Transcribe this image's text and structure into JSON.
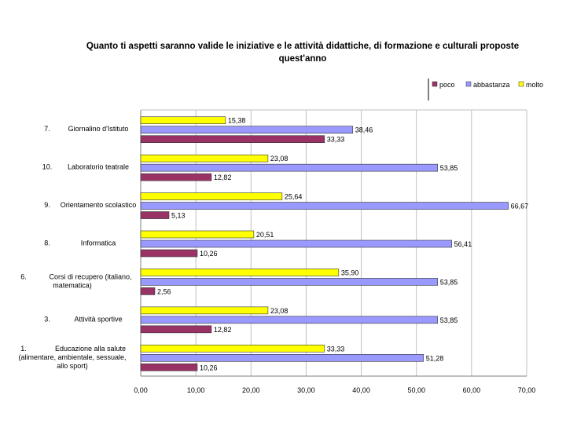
{
  "chart_data": {
    "type": "bar",
    "orientation": "horizontal",
    "title": "Quanto ti aspetti saranno valide le iniziative e le attività didattiche, di formazione e culturali proposte quest'anno",
    "title_lines": [
      "Quanto ti aspetti saranno valide le iniziative e le attività didattiche, di formazione e culturali proposte",
      "quest'anno"
    ],
    "xlim": [
      0,
      70
    ],
    "xticks": [
      0,
      10,
      20,
      30,
      40,
      50,
      60,
      70
    ],
    "xtick_labels": [
      "0,00",
      "10,00",
      "20,00",
      "30,00",
      "40,00",
      "50,00",
      "60,00",
      "70,00"
    ],
    "grid": true,
    "legend_position": "top-right",
    "categories": [
      {
        "num": "7.",
        "lines": [
          "Giornalino d'Istituto"
        ]
      },
      {
        "num": "10.",
        "lines": [
          "Laboratorio teatrale"
        ]
      },
      {
        "num": "9.",
        "lines": [
          "Orientamento scolastico"
        ]
      },
      {
        "num": "8.",
        "lines": [
          "Informatica"
        ]
      },
      {
        "num": "6.",
        "lines": [
          "Corsi di recupero (italiano,",
          "matematica)"
        ]
      },
      {
        "num": "3.",
        "lines": [
          "Attività sportive"
        ]
      },
      {
        "num": "1.",
        "lines": [
          "Educazione alla salute",
          "(alimentare, ambientale, sessuale,",
          "allo sport)"
        ]
      }
    ],
    "series": [
      {
        "name": "poco",
        "color": "#993366",
        "values": [
          33.33,
          12.82,
          5.13,
          10.26,
          2.56,
          12.82,
          10.26
        ],
        "labels": [
          "33,33",
          "12,82",
          "5,13",
          "10,26",
          "2,56",
          "12,82",
          "10,26"
        ]
      },
      {
        "name": "abbastanza",
        "color": "#9999ff",
        "values": [
          38.46,
          53.85,
          66.67,
          56.41,
          53.85,
          53.85,
          51.28
        ],
        "labels": [
          "38,46",
          "53,85",
          "66,67",
          "56,41",
          "53,85",
          "53,85",
          "51,28"
        ]
      },
      {
        "name": "molto",
        "color": "#ffff00",
        "values": [
          15.38,
          23.08,
          25.64,
          20.51,
          35.9,
          23.08,
          33.33
        ],
        "labels": [
          "15,38",
          "23,08",
          "25,64",
          "20,51",
          "35,90",
          "23,08",
          "33,33"
        ]
      }
    ]
  }
}
